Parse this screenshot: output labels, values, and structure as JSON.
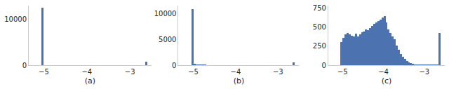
{
  "chart_data": [
    {
      "type": "histogram",
      "xlabel": "(a)",
      "color": "#4c72b0",
      "grid": false,
      "bins": [
        -5.05,
        -5.0,
        -4.95,
        -4.9,
        -4.85,
        -4.8,
        -4.75,
        -4.7,
        -4.65,
        -4.6,
        -4.55,
        -4.5,
        -4.45,
        -4.4,
        -4.35,
        -4.3,
        -4.25,
        -4.2,
        -4.15,
        -4.1,
        -4.05,
        -4.0,
        -3.95,
        -3.9,
        -3.85,
        -3.8,
        -3.75,
        -3.7,
        -3.65,
        -3.6,
        -3.55,
        -3.5,
        -3.45,
        -3.4,
        -3.35,
        -3.3,
        -3.25,
        -3.2,
        -3.15,
        -3.1,
        -3.05,
        -3.0,
        -2.95,
        -2.9,
        -2.85,
        -2.8,
        -2.75,
        -2.7,
        -2.65,
        -2.6,
        -2.55
      ],
      "values": [
        12500,
        50,
        20,
        10,
        10,
        5,
        5,
        5,
        5,
        5,
        5,
        5,
        5,
        5,
        5,
        5,
        5,
        5,
        5,
        5,
        5,
        5,
        5,
        5,
        5,
        5,
        5,
        5,
        5,
        5,
        5,
        5,
        5,
        5,
        5,
        5,
        5,
        5,
        5,
        5,
        5,
        5,
        5,
        5,
        5,
        5,
        5,
        10,
        750,
        0
      ],
      "xlim": [
        -5.35,
        -2.5
      ],
      "xticks": [
        {
          "value": -5,
          "label": "−5"
        },
        {
          "value": -4,
          "label": "−4"
        },
        {
          "value": -3,
          "label": "−3"
        }
      ],
      "ylim": [
        0,
        13000
      ],
      "yticks": [
        0,
        10000
      ]
    },
    {
      "type": "histogram",
      "xlabel": "(b)",
      "color": "#4c72b0",
      "grid": false,
      "bins": [
        -5.05,
        -5.0,
        -4.95,
        -4.9,
        -4.85,
        -4.8,
        -4.75,
        -4.7,
        -4.65,
        -4.6,
        -4.55,
        -4.5,
        -4.45,
        -4.4,
        -4.35,
        -4.3,
        -4.25,
        -4.2,
        -4.15,
        -4.1,
        -4.05,
        -4.0,
        -3.95,
        -3.9,
        -3.85,
        -3.8,
        -3.75,
        -3.7,
        -3.65,
        -3.6,
        -3.55,
        -3.5,
        -3.45,
        -3.4,
        -3.35,
        -3.3,
        -3.25,
        -3.2,
        -3.15,
        -3.1,
        -3.05,
        -3.0,
        -2.95,
        -2.9,
        -2.85,
        -2.8,
        -2.75,
        -2.7,
        -2.65,
        -2.6,
        -2.55
      ],
      "values": [
        10800,
        250,
        150,
        110,
        90,
        80,
        70,
        65,
        60,
        60,
        55,
        55,
        50,
        50,
        50,
        45,
        45,
        45,
        40,
        40,
        40,
        40,
        35,
        35,
        35,
        30,
        30,
        30,
        30,
        25,
        25,
        25,
        25,
        20,
        20,
        20,
        20,
        20,
        20,
        20,
        20,
        20,
        20,
        20,
        25,
        25,
        30,
        40,
        500,
        0
      ],
      "xlim": [
        -5.35,
        -2.5
      ],
      "xticks": [
        {
          "value": -5,
          "label": "−5"
        },
        {
          "value": -4,
          "label": "−4"
        },
        {
          "value": -3,
          "label": "−3"
        }
      ],
      "ylim": [
        0,
        11500
      ],
      "yticks": [
        0,
        5000,
        10000
      ]
    },
    {
      "type": "histogram",
      "xlabel": "(c)",
      "color": "#4c72b0",
      "grid": false,
      "bins": [
        -5.05,
        -5.0,
        -4.95,
        -4.9,
        -4.85,
        -4.8,
        -4.75,
        -4.7,
        -4.65,
        -4.6,
        -4.55,
        -4.5,
        -4.45,
        -4.4,
        -4.35,
        -4.3,
        -4.25,
        -4.2,
        -4.15,
        -4.1,
        -4.05,
        -4.0,
        -3.95,
        -3.9,
        -3.85,
        -3.8,
        -3.75,
        -3.7,
        -3.65,
        -3.6,
        -3.55,
        -3.5,
        -3.45,
        -3.4,
        -3.35,
        -3.3,
        -3.25,
        -3.2,
        -3.15,
        -3.1,
        -3.05,
        -3.0,
        -2.95,
        -2.9,
        -2.85,
        -2.8,
        -2.75,
        -2.7,
        -2.65,
        -2.6,
        -2.55
      ],
      "values": [
        300,
        360,
        400,
        420,
        400,
        390,
        380,
        410,
        380,
        400,
        430,
        440,
        470,
        460,
        490,
        510,
        540,
        560,
        580,
        600,
        620,
        640,
        560,
        470,
        420,
        380,
        340,
        260,
        200,
        150,
        110,
        80,
        55,
        35,
        25,
        15,
        10,
        5,
        5,
        5,
        5,
        5,
        5,
        5,
        5,
        5,
        5,
        5,
        420,
        0
      ],
      "xlim": [
        -5.35,
        -2.5
      ],
      "xticks": [
        {
          "value": -5,
          "label": "−5"
        },
        {
          "value": -4,
          "label": "−4"
        },
        {
          "value": -3,
          "label": "−3"
        }
      ],
      "ylim": [
        0,
        780
      ],
      "yticks": [
        0,
        250,
        500,
        750
      ]
    }
  ]
}
